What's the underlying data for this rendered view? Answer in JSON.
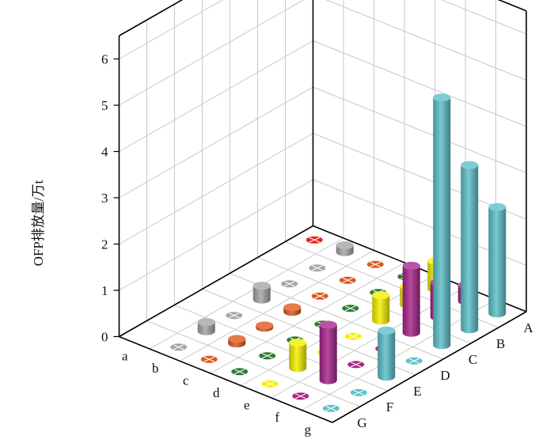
{
  "chart_data": {
    "type": "bar",
    "subtype": "3d-cylinder",
    "ylabel": "OFP排放量/万t",
    "zlim": [
      0,
      6.5
    ],
    "z_ticks": [
      "0",
      "1",
      "2",
      "3",
      "4",
      "5",
      "6"
    ],
    "x_categories": [
      "a",
      "b",
      "c",
      "d",
      "e",
      "f",
      "g"
    ],
    "y_categories": [
      "A",
      "B",
      "C",
      "D",
      "E",
      "F",
      "G"
    ],
    "grid": true,
    "colors": {
      "a": "#e8241c",
      "b": "#a6a6a6",
      "c": "#de5a1e",
      "d": "#2f7d32",
      "e": "#f4f000",
      "f": "#a8288c",
      "g": "#5fc1c9"
    },
    "values": [
      {
        "x": "a",
        "y": "A",
        "z": 0.0
      },
      {
        "x": "b",
        "y": "A",
        "z": 0.15
      },
      {
        "x": "b",
        "y": "B",
        "z": 0.0
      },
      {
        "x": "b",
        "y": "C",
        "z": 0.0
      },
      {
        "x": "b",
        "y": "D",
        "z": 0.3
      },
      {
        "x": "b",
        "y": "E",
        "z": 0.0
      },
      {
        "x": "b",
        "y": "F",
        "z": 0.2
      },
      {
        "x": "b",
        "y": "G",
        "z": 0.0
      },
      {
        "x": "c",
        "y": "A",
        "z": 0.0
      },
      {
        "x": "c",
        "y": "B",
        "z": 0.0
      },
      {
        "x": "c",
        "y": "C",
        "z": 0.0
      },
      {
        "x": "c",
        "y": "D",
        "z": 0.1
      },
      {
        "x": "c",
        "y": "E",
        "z": 0.05
      },
      {
        "x": "c",
        "y": "F",
        "z": 0.1
      },
      {
        "x": "c",
        "y": "G",
        "z": 0.0
      },
      {
        "x": "d",
        "y": "A",
        "z": 0.0
      },
      {
        "x": "d",
        "y": "B",
        "z": 0.0
      },
      {
        "x": "d",
        "y": "C",
        "z": 0.0
      },
      {
        "x": "d",
        "y": "D",
        "z": 0.0
      },
      {
        "x": "d",
        "y": "E",
        "z": 0.0
      },
      {
        "x": "d",
        "y": "F",
        "z": 0.0
      },
      {
        "x": "d",
        "y": "G",
        "z": 0.0
      },
      {
        "x": "e",
        "y": "A",
        "z": 0.6
      },
      {
        "x": "e",
        "y": "B",
        "z": 0.4
      },
      {
        "x": "e",
        "y": "C",
        "z": 0.55
      },
      {
        "x": "e",
        "y": "D",
        "z": 0.0
      },
      {
        "x": "e",
        "y": "E",
        "z": 0.0
      },
      {
        "x": "e",
        "y": "F",
        "z": 0.55
      },
      {
        "x": "e",
        "y": "G",
        "z": 0.0
      },
      {
        "x": "f",
        "y": "A",
        "z": 0.35
      },
      {
        "x": "f",
        "y": "B",
        "z": 0.75
      },
      {
        "x": "f",
        "y": "C",
        "z": 1.45
      },
      {
        "x": "f",
        "y": "D",
        "z": 0.0
      },
      {
        "x": "f",
        "y": "E",
        "z": 0.0
      },
      {
        "x": "f",
        "y": "F",
        "z": 1.2
      },
      {
        "x": "f",
        "y": "G",
        "z": 0.0
      },
      {
        "x": "g",
        "y": "A",
        "z": 2.3
      },
      {
        "x": "g",
        "y": "B",
        "z": 3.55
      },
      {
        "x": "g",
        "y": "C",
        "z": 5.35
      },
      {
        "x": "g",
        "y": "D",
        "z": 0.0
      },
      {
        "x": "g",
        "y": "E",
        "z": 1.0
      },
      {
        "x": "g",
        "y": "F",
        "z": 0.0
      },
      {
        "x": "g",
        "y": "G",
        "z": 0.0
      }
    ]
  }
}
